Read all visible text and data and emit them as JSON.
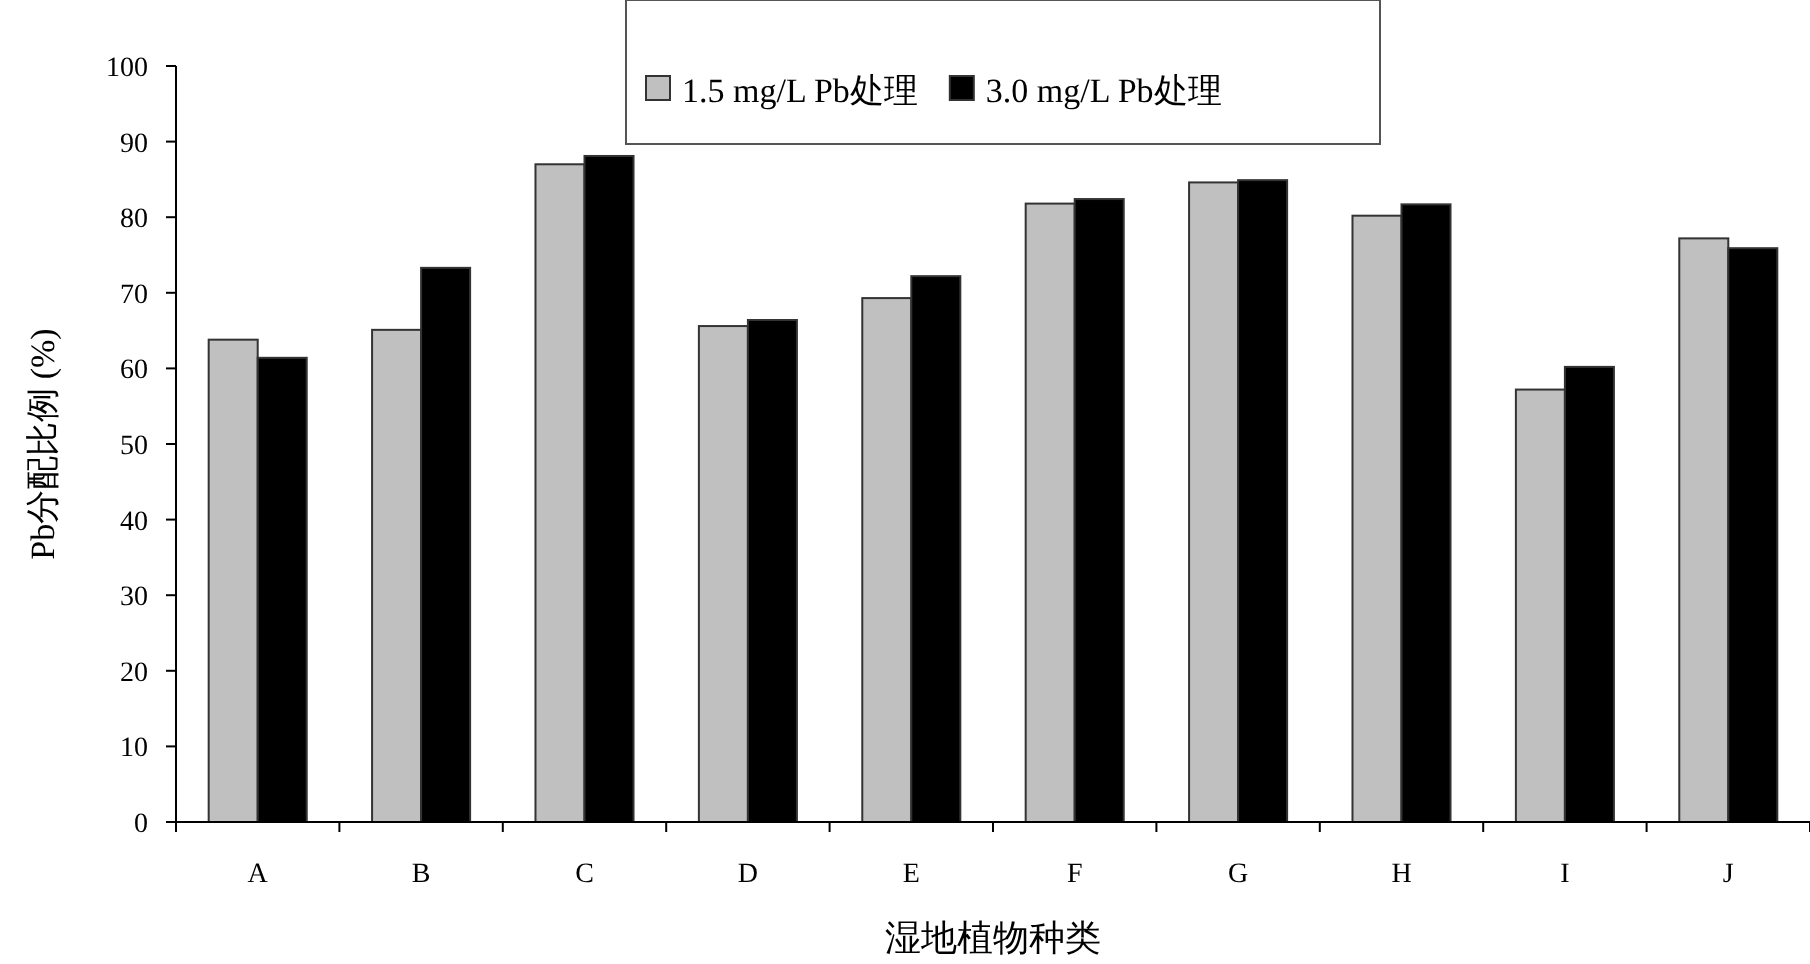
{
  "chart_data": {
    "type": "bar",
    "xlabel": "湿地植物种类",
    "ylabel": "Pb分配比例 (%)",
    "categories": [
      "A",
      "B",
      "C",
      "D",
      "E",
      "F",
      "G",
      "H",
      "I",
      "J"
    ],
    "series": [
      {
        "name": "1.5 mg/L Pb处理",
        "color": "#c0c0c0",
        "values": [
          63.8,
          65.1,
          87.0,
          65.6,
          69.3,
          81.8,
          84.6,
          80.2,
          57.2,
          77.2
        ]
      },
      {
        "name": "3.0 mg/L Pb处理",
        "color": "#000000",
        "values": [
          61.4,
          73.3,
          88.1,
          66.4,
          72.2,
          82.4,
          84.9,
          81.7,
          60.2,
          75.9
        ]
      }
    ],
    "ylim": [
      0,
      100
    ],
    "yticks": [
      0,
      10,
      20,
      30,
      40,
      50,
      60,
      70,
      80,
      90,
      100
    ],
    "grid": false,
    "legend": "top"
  }
}
